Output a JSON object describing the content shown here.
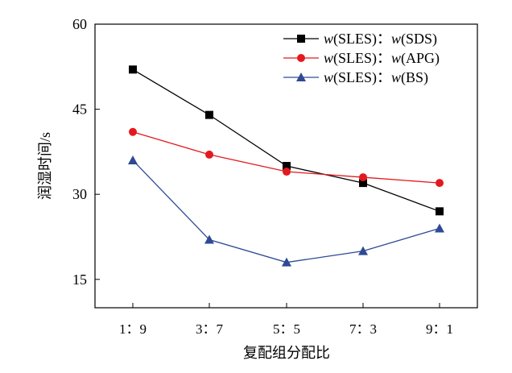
{
  "chart_data": {
    "type": "line",
    "title": "",
    "xlabel": "复配组分配比",
    "ylabel": "润湿时间/s",
    "categories": [
      "1：9",
      "3：7",
      "5：5",
      "7：3",
      "9：1"
    ],
    "ylim": [
      10,
      60
    ],
    "yticks": [
      15,
      30,
      45,
      60
    ],
    "grid": false,
    "legend_position": "top-right",
    "series": [
      {
        "name": "w(SLES)：w(SDS)",
        "prefix": "w",
        "a": "(SLES)：",
        "b": "w",
        "c": "(SDS)",
        "color": "#000000",
        "marker": "square",
        "values": [
          52,
          44,
          35,
          32,
          27
        ]
      },
      {
        "name": "w(SLES)：w(APG)",
        "prefix": "w",
        "a": "(SLES)：",
        "b": "w",
        "c": "(APG)",
        "color": "#e3191e",
        "marker": "circle",
        "values": [
          41,
          37,
          34,
          33,
          32
        ]
      },
      {
        "name": "w(SLES)：w(BS)",
        "prefix": "w",
        "a": "(SLES)：",
        "b": "w",
        "c": "(BS)",
        "color": "#2e4a94",
        "marker": "triangle",
        "values": [
          36,
          22,
          18,
          20,
          24
        ]
      }
    ]
  }
}
